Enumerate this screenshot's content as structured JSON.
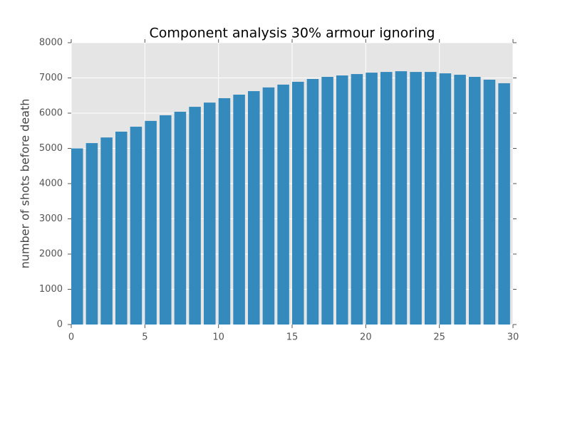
{
  "chart_data": {
    "type": "bar",
    "title": "Component analysis 30% armour ignoring",
    "y_label": "number of shots before death",
    "x": [
      0,
      1,
      2,
      3,
      4,
      5,
      6,
      7,
      8,
      9,
      10,
      11,
      12,
      13,
      14,
      15,
      16,
      17,
      18,
      19,
      20,
      21,
      22,
      23,
      24,
      25,
      26,
      27,
      28,
      29
    ],
    "values": [
      5000,
      5150,
      5310,
      5475,
      5615,
      5780,
      5940,
      6040,
      6180,
      6300,
      6425,
      6525,
      6625,
      6730,
      6810,
      6890,
      6970,
      7030,
      7070,
      7110,
      7150,
      7170,
      7190,
      7170,
      7170,
      7130,
      7090,
      7030,
      6950,
      6850
    ],
    "color": "#348abd",
    "xlim": [
      0,
      30
    ],
    "xticks": [
      0,
      5,
      10,
      15,
      20,
      25,
      30
    ],
    "ylim": [
      0,
      8000
    ],
    "yticks": [
      0,
      1000,
      2000,
      3000,
      4000,
      5000,
      6000,
      7000,
      8000
    ],
    "grid": true
  }
}
